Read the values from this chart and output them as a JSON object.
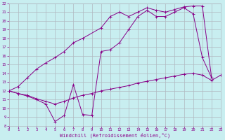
{
  "bg_color": "#c8eef0",
  "grid_color": "#b0b8c0",
  "line_color": "#880088",
  "xlabel": "Windchill (Refroidissement éolien,°C)",
  "xmin": 0,
  "xmax": 23,
  "ymin": 8,
  "ymax": 22,
  "line1_x": [
    0,
    1,
    2,
    3,
    4,
    5,
    6,
    7,
    8,
    9,
    10,
    11,
    12,
    13,
    14,
    15,
    16,
    17,
    18,
    19,
    20,
    21,
    22,
    23
  ],
  "line1_y": [
    12.0,
    11.7,
    11.5,
    11.1,
    10.8,
    10.5,
    10.8,
    11.2,
    11.5,
    11.7,
    12.0,
    12.2,
    12.4,
    12.6,
    12.9,
    13.1,
    13.3,
    13.5,
    13.7,
    13.9,
    14.0,
    13.8,
    13.2,
    13.8
  ],
  "line2_x": [
    0,
    1,
    2,
    3,
    4,
    5,
    6,
    7,
    8,
    9,
    10,
    11,
    12,
    13,
    14,
    15,
    16,
    17,
    18,
    19,
    20,
    21,
    22
  ],
  "line2_y": [
    12.0,
    11.7,
    11.4,
    11.0,
    10.5,
    8.5,
    9.2,
    12.7,
    9.3,
    9.2,
    16.5,
    16.7,
    17.5,
    19.0,
    20.5,
    21.2,
    20.5,
    20.5,
    21.0,
    21.5,
    20.8,
    15.8,
    13.5
  ],
  "line3_x": [
    0,
    1,
    2,
    3,
    4,
    5,
    6,
    7,
    8,
    10,
    11,
    12,
    13,
    14,
    15,
    16,
    17,
    18,
    19,
    20,
    21,
    22
  ],
  "line3_y": [
    12.0,
    12.5,
    13.5,
    14.5,
    15.2,
    15.8,
    16.5,
    17.5,
    18.0,
    19.2,
    20.5,
    21.0,
    20.5,
    21.0,
    21.5,
    21.2,
    21.0,
    21.3,
    21.6,
    21.7,
    21.7,
    13.5
  ],
  "xticks": [
    0,
    1,
    2,
    3,
    4,
    5,
    6,
    7,
    8,
    9,
    10,
    11,
    12,
    13,
    14,
    15,
    16,
    17,
    18,
    19,
    20,
    21,
    22,
    23
  ],
  "yticks": [
    8,
    9,
    10,
    11,
    12,
    13,
    14,
    15,
    16,
    17,
    18,
    19,
    20,
    21,
    22
  ]
}
